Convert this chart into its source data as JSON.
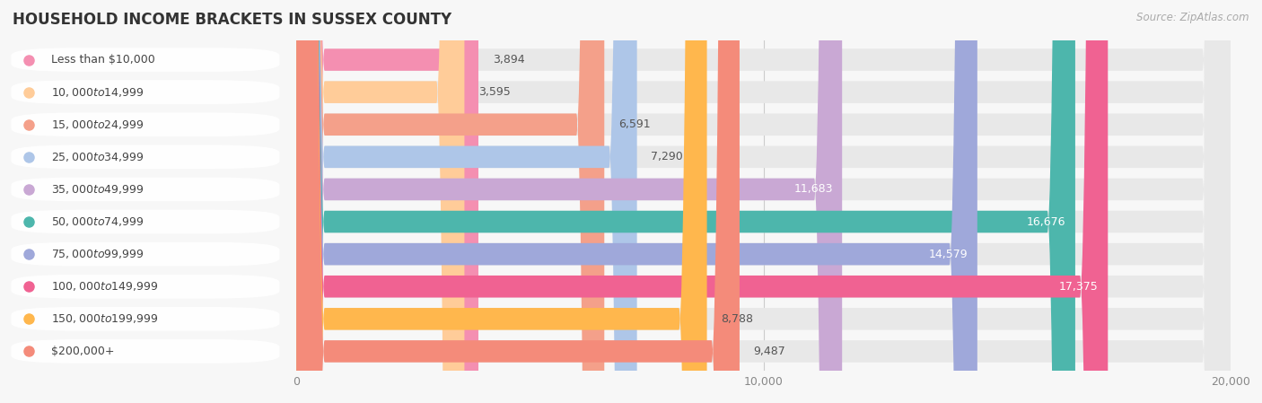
{
  "title": "HOUSEHOLD INCOME BRACKETS IN SUSSEX COUNTY",
  "source": "Source: ZipAtlas.com",
  "categories": [
    "Less than $10,000",
    "$10,000 to $14,999",
    "$15,000 to $24,999",
    "$25,000 to $34,999",
    "$35,000 to $49,999",
    "$50,000 to $74,999",
    "$75,000 to $99,999",
    "$100,000 to $149,999",
    "$150,000 to $199,999",
    "$200,000+"
  ],
  "values": [
    3894,
    3595,
    6591,
    7290,
    11683,
    16676,
    14579,
    17375,
    8788,
    9487
  ],
  "bar_colors": [
    "#f48fb1",
    "#ffcc99",
    "#f4a08a",
    "#aec6e8",
    "#c9a8d4",
    "#4db6ac",
    "#9fa8da",
    "#f06292",
    "#ffb74d",
    "#f48b7a"
  ],
  "xlim": [
    0,
    20000
  ],
  "xticks": [
    0,
    10000,
    20000
  ],
  "xticklabels": [
    "0",
    "10,000",
    "20,000"
  ],
  "background_color": "#f7f7f7",
  "bar_bg_color": "#e8e8e8",
  "title_fontsize": 12,
  "bar_height": 0.68,
  "label_fontsize": 9,
  "value_fontsize": 9
}
